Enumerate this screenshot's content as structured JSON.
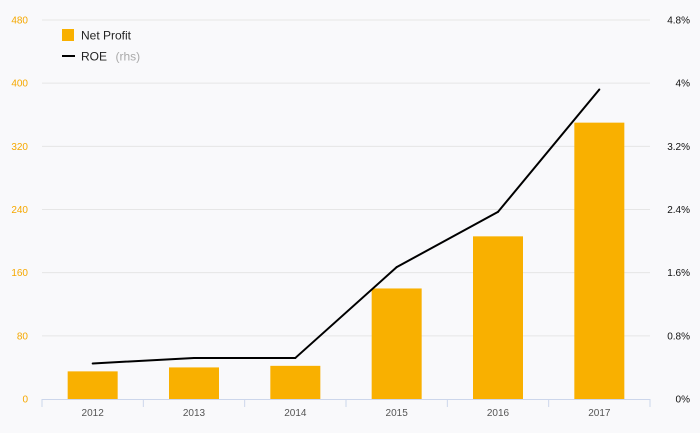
{
  "chart_data": {
    "type": "bar",
    "categories": [
      "2012",
      "2013",
      "2014",
      "2015",
      "2016",
      "2017"
    ],
    "series": [
      {
        "name": "Net Profit",
        "type": "bar",
        "axis": "left",
        "color": "#f9b000",
        "values": [
          35,
          40,
          42,
          140,
          206,
          350
        ]
      },
      {
        "name": "ROE",
        "name_suffix": "(rhs)",
        "type": "line",
        "axis": "right",
        "color": "#000000",
        "values": [
          0.45,
          0.52,
          0.52,
          1.67,
          2.37,
          3.92
        ]
      }
    ],
    "y_left": {
      "ylim": [
        0,
        480
      ],
      "ticks": [
        "0",
        "80",
        "160",
        "240",
        "320",
        "400",
        "480"
      ],
      "color": "#f5a800"
    },
    "y_right": {
      "ylim": [
        0,
        4.8
      ],
      "ticks": [
        "0%",
        "0.8%",
        "1.6%",
        "2.4%",
        "3.2%",
        "4%",
        "4.8%"
      ]
    },
    "grid": true,
    "legend_position": "top-left"
  }
}
